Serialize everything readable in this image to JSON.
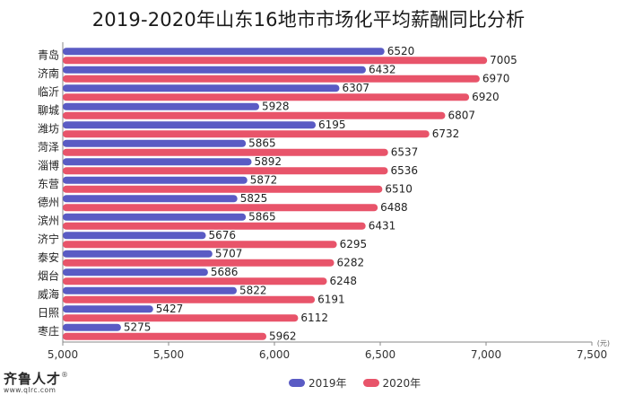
{
  "title": "2019-2020年山东16地市市场化平均薪酬同比分析",
  "logo": {
    "name": "齐鲁人才",
    "registered_mark": "®",
    "site": "www.qlrc.com"
  },
  "colors": {
    "series_2019": "#5a5bc4",
    "series_2020": "#e8546a",
    "axis": "#888888"
  },
  "chart_data": {
    "type": "bar",
    "orientation": "horizontal",
    "title": "2019-2020年山东16地市市场化平均薪酬同比分析",
    "categories": [
      "青岛",
      "济南",
      "临沂",
      "聊城",
      "潍坊",
      "菏泽",
      "淄博",
      "东营",
      "德州",
      "滨州",
      "济宁",
      "泰安",
      "烟台",
      "威海",
      "日照",
      "枣庄"
    ],
    "series": [
      {
        "name": "2019年",
        "values": [
          6520,
          6432,
          6307,
          5928,
          6195,
          5865,
          5892,
          5872,
          5825,
          5865,
          5676,
          5707,
          5686,
          5822,
          5427,
          5275
        ]
      },
      {
        "name": "2020年",
        "values": [
          7005,
          6970,
          6920,
          6807,
          6732,
          6537,
          6536,
          6510,
          6488,
          6431,
          6295,
          6282,
          6248,
          6191,
          6112,
          5962
        ]
      }
    ],
    "xlim": [
      5000,
      7500
    ],
    "xticks": [
      5000,
      5500,
      6000,
      6500,
      7000,
      7500
    ],
    "xtick_labels": [
      "5,000",
      "5,500",
      "6,000",
      "6,500",
      "7,000",
      "7,500"
    ],
    "unit": "(元)",
    "legend_position": "bottom-center",
    "grid": false
  }
}
